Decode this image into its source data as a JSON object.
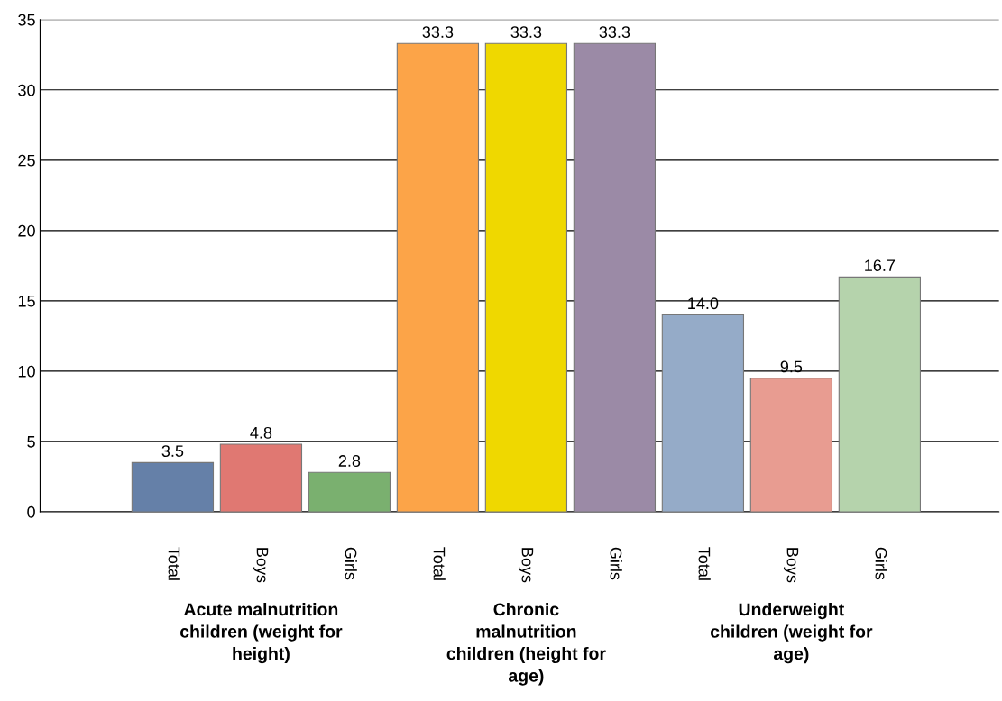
{
  "chart_data": {
    "type": "bar",
    "categories": [
      "Total",
      "Boys",
      "Girls",
      "Total",
      "Boys",
      "Girls",
      "Total",
      "Boys",
      "Girls"
    ],
    "values": [
      3.5,
      4.8,
      2.8,
      33.3,
      33.3,
      33.3,
      14.0,
      9.5,
      16.7
    ],
    "value_labels": [
      "3.5",
      "4.8",
      "2.8",
      "33.3",
      "33.3",
      "33.3",
      "14.0",
      "9.5",
      "16.7"
    ],
    "colors": [
      "#6580a8",
      "#e07872",
      "#7ab06f",
      "#fca448",
      "#efd800",
      "#9b8aa6",
      "#95abc8",
      "#e89c91",
      "#b5d3ac"
    ],
    "annotations": [
      "Acute malnutrition\nchildren (weight for\nheight)",
      "Chronic\nmalnutrition\nchildren (height for\nage)",
      "Underweight\nchildren (weight for\nage)"
    ],
    "ylim": [
      0,
      35
    ],
    "yticks": [
      0,
      5,
      10,
      15,
      20,
      25,
      30,
      35
    ],
    "grid": "y",
    "legend": false
  }
}
